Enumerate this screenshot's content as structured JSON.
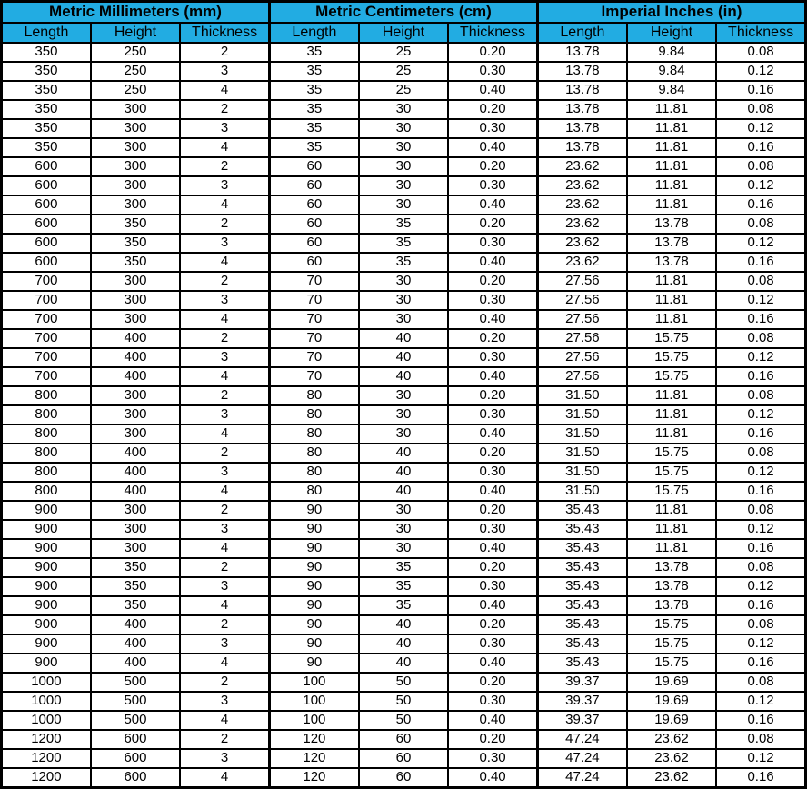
{
  "colors": {
    "header_bg": "#22ACE2",
    "border": "#000000",
    "cell_bg": "#FFFFFF",
    "text": "#000000"
  },
  "table": {
    "groups": [
      {
        "title": "Metric Millimeters (mm)"
      },
      {
        "title": "Metric Centimeters (cm)"
      },
      {
        "title": "Imperial Inches (in)"
      }
    ],
    "columns": [
      "Length",
      "Height",
      "Thickness",
      "Length",
      "Height",
      "Thickness",
      "Length",
      "Height",
      "Thickness"
    ],
    "rows": [
      [
        "350",
        "250",
        "2",
        "35",
        "25",
        "0.20",
        "13.78",
        "9.84",
        "0.08"
      ],
      [
        "350",
        "250",
        "3",
        "35",
        "25",
        "0.30",
        "13.78",
        "9.84",
        "0.12"
      ],
      [
        "350",
        "250",
        "4",
        "35",
        "25",
        "0.40",
        "13.78",
        "9.84",
        "0.16"
      ],
      [
        "350",
        "300",
        "2",
        "35",
        "30",
        "0.20",
        "13.78",
        "11.81",
        "0.08"
      ],
      [
        "350",
        "300",
        "3",
        "35",
        "30",
        "0.30",
        "13.78",
        "11.81",
        "0.12"
      ],
      [
        "350",
        "300",
        "4",
        "35",
        "30",
        "0.40",
        "13.78",
        "11.81",
        "0.16"
      ],
      [
        "600",
        "300",
        "2",
        "60",
        "30",
        "0.20",
        "23.62",
        "11.81",
        "0.08"
      ],
      [
        "600",
        "300",
        "3",
        "60",
        "30",
        "0.30",
        "23.62",
        "11.81",
        "0.12"
      ],
      [
        "600",
        "300",
        "4",
        "60",
        "30",
        "0.40",
        "23.62",
        "11.81",
        "0.16"
      ],
      [
        "600",
        "350",
        "2",
        "60",
        "35",
        "0.20",
        "23.62",
        "13.78",
        "0.08"
      ],
      [
        "600",
        "350",
        "3",
        "60",
        "35",
        "0.30",
        "23.62",
        "13.78",
        "0.12"
      ],
      [
        "600",
        "350",
        "4",
        "60",
        "35",
        "0.40",
        "23.62",
        "13.78",
        "0.16"
      ],
      [
        "700",
        "300",
        "2",
        "70",
        "30",
        "0.20",
        "27.56",
        "11.81",
        "0.08"
      ],
      [
        "700",
        "300",
        "3",
        "70",
        "30",
        "0.30",
        "27.56",
        "11.81",
        "0.12"
      ],
      [
        "700",
        "300",
        "4",
        "70",
        "30",
        "0.40",
        "27.56",
        "11.81",
        "0.16"
      ],
      [
        "700",
        "400",
        "2",
        "70",
        "40",
        "0.20",
        "27.56",
        "15.75",
        "0.08"
      ],
      [
        "700",
        "400",
        "3",
        "70",
        "40",
        "0.30",
        "27.56",
        "15.75",
        "0.12"
      ],
      [
        "700",
        "400",
        "4",
        "70",
        "40",
        "0.40",
        "27.56",
        "15.75",
        "0.16"
      ],
      [
        "800",
        "300",
        "2",
        "80",
        "30",
        "0.20",
        "31.50",
        "11.81",
        "0.08"
      ],
      [
        "800",
        "300",
        "3",
        "80",
        "30",
        "0.30",
        "31.50",
        "11.81",
        "0.12"
      ],
      [
        "800",
        "300",
        "4",
        "80",
        "30",
        "0.40",
        "31.50",
        "11.81",
        "0.16"
      ],
      [
        "800",
        "400",
        "2",
        "80",
        "40",
        "0.20",
        "31.50",
        "15.75",
        "0.08"
      ],
      [
        "800",
        "400",
        "3",
        "80",
        "40",
        "0.30",
        "31.50",
        "15.75",
        "0.12"
      ],
      [
        "800",
        "400",
        "4",
        "80",
        "40",
        "0.40",
        "31.50",
        "15.75",
        "0.16"
      ],
      [
        "900",
        "300",
        "2",
        "90",
        "30",
        "0.20",
        "35.43",
        "11.81",
        "0.08"
      ],
      [
        "900",
        "300",
        "3",
        "90",
        "30",
        "0.30",
        "35.43",
        "11.81",
        "0.12"
      ],
      [
        "900",
        "300",
        "4",
        "90",
        "30",
        "0.40",
        "35.43",
        "11.81",
        "0.16"
      ],
      [
        "900",
        "350",
        "2",
        "90",
        "35",
        "0.20",
        "35.43",
        "13.78",
        "0.08"
      ],
      [
        "900",
        "350",
        "3",
        "90",
        "35",
        "0.30",
        "35.43",
        "13.78",
        "0.12"
      ],
      [
        "900",
        "350",
        "4",
        "90",
        "35",
        "0.40",
        "35.43",
        "13.78",
        "0.16"
      ],
      [
        "900",
        "400",
        "2",
        "90",
        "40",
        "0.20",
        "35.43",
        "15.75",
        "0.08"
      ],
      [
        "900",
        "400",
        "3",
        "90",
        "40",
        "0.30",
        "35.43",
        "15.75",
        "0.12"
      ],
      [
        "900",
        "400",
        "4",
        "90",
        "40",
        "0.40",
        "35.43",
        "15.75",
        "0.16"
      ],
      [
        "1000",
        "500",
        "2",
        "100",
        "50",
        "0.20",
        "39.37",
        "19.69",
        "0.08"
      ],
      [
        "1000",
        "500",
        "3",
        "100",
        "50",
        "0.30",
        "39.37",
        "19.69",
        "0.12"
      ],
      [
        "1000",
        "500",
        "4",
        "100",
        "50",
        "0.40",
        "39.37",
        "19.69",
        "0.16"
      ],
      [
        "1200",
        "600",
        "2",
        "120",
        "60",
        "0.20",
        "47.24",
        "23.62",
        "0.08"
      ],
      [
        "1200",
        "600",
        "3",
        "120",
        "60",
        "0.30",
        "47.24",
        "23.62",
        "0.12"
      ],
      [
        "1200",
        "600",
        "4",
        "120",
        "60",
        "0.40",
        "47.24",
        "23.62",
        "0.16"
      ]
    ]
  }
}
